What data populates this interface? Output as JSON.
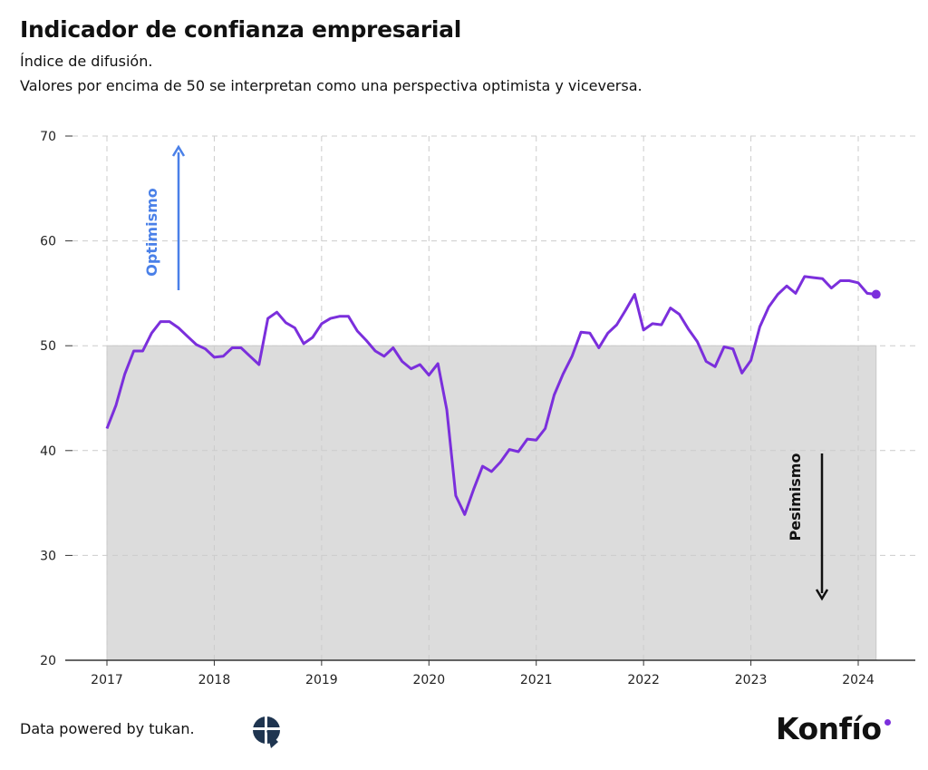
{
  "colors": {
    "line": "#7b2fdc",
    "shade": "#dcdcdc",
    "optimism": "#4a80e8",
    "pessimism": "#111111",
    "grid": "#cccccc"
  },
  "footer": {
    "text": "Data powered by tukan.",
    "brand": "Konfío",
    "tukan_logo": "tukan"
  },
  "chart_data": {
    "type": "line",
    "title": "Indicador de confianza empresarial",
    "subtitle": [
      "Índice de difusión.",
      "Valores por encima de 50 se interpretan como una perspectiva optimista y viceversa."
    ],
    "xlabel": "",
    "ylabel": "",
    "ylim": [
      20,
      70
    ],
    "yticks": [
      20,
      30,
      40,
      50,
      60,
      70
    ],
    "xticks": [
      "2017",
      "2018",
      "2019",
      "2020",
      "2021",
      "2022",
      "2023",
      "2024"
    ],
    "grid": true,
    "threshold": 50,
    "annotations": {
      "up": "Optimismo",
      "down": "Pesimismo"
    },
    "start": "2017-01",
    "frequency": "monthly",
    "values": [
      42.1,
      44.3,
      47.3,
      49.5,
      49.5,
      51.2,
      52.3,
      52.3,
      51.7,
      50.9,
      50.1,
      49.7,
      48.9,
      49.0,
      49.8,
      49.8,
      49.0,
      48.2,
      52.6,
      53.2,
      52.2,
      51.7,
      50.2,
      50.8,
      52.1,
      52.6,
      52.8,
      52.8,
      51.4,
      50.5,
      49.5,
      49.0,
      49.8,
      48.5,
      47.8,
      48.2,
      47.2,
      48.3,
      43.9,
      35.7,
      33.9,
      36.3,
      38.5,
      38.0,
      38.9,
      40.1,
      39.9,
      41.1,
      41.0,
      42.1,
      45.3,
      47.3,
      49.0,
      51.3,
      51.2,
      49.8,
      51.2,
      52.0,
      53.4,
      54.9,
      51.5,
      52.1,
      52.0,
      53.6,
      53.0,
      51.6,
      50.4,
      48.5,
      48.0,
      49.9,
      49.7,
      47.4,
      48.6,
      51.8,
      53.7,
      54.9,
      55.7,
      55.0,
      56.6,
      56.5,
      56.4,
      55.5,
      56.2,
      56.2,
      56.0,
      55.0,
      54.9
    ]
  }
}
